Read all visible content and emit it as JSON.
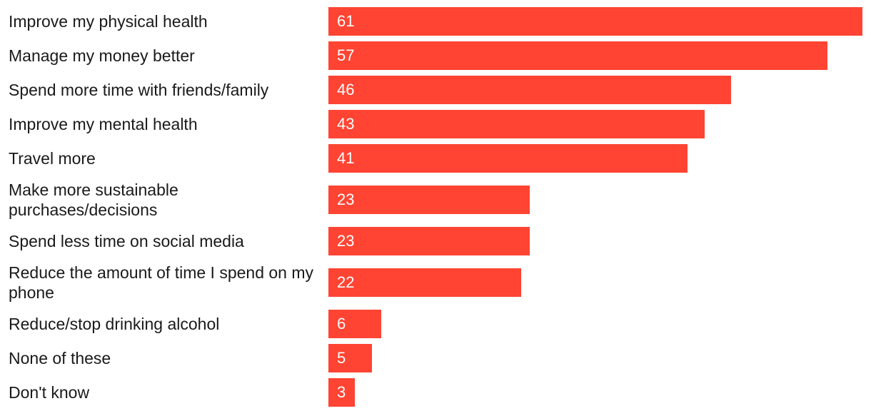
{
  "chart_data": {
    "type": "bar",
    "orientation": "horizontal",
    "categories": [
      "Improve my physical health",
      "Manage my money better",
      "Spend more time with friends/family",
      "Improve my mental health",
      "Travel more",
      "Make more sustainable purchases/decisions",
      "Spend less time on social media",
      "Reduce the amount of time I spend on my phone",
      "Reduce/stop drinking alcohol",
      "None of these",
      "Don't know"
    ],
    "values": [
      61,
      57,
      46,
      43,
      41,
      23,
      23,
      22,
      6,
      5,
      3
    ],
    "data_labels": [
      "61",
      "57",
      "46",
      "43",
      "41",
      "23",
      "23",
      "22",
      "6",
      "5",
      "3"
    ],
    "xlim": [
      0,
      61
    ],
    "bar_color": "#ff4433",
    "grid": false,
    "legend": "none"
  }
}
